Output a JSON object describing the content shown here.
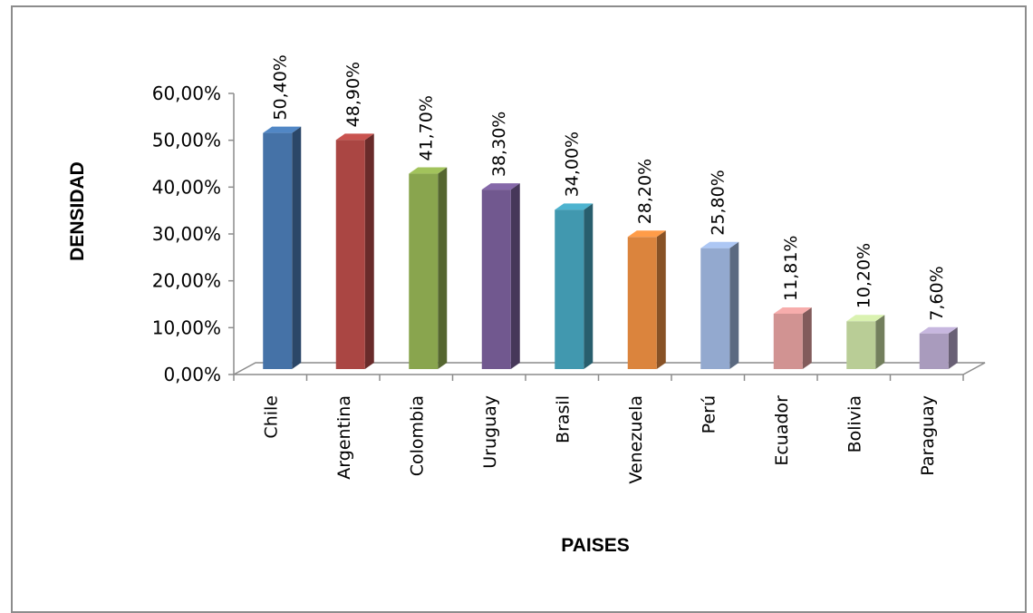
{
  "chart_data": {
    "type": "bar",
    "title": "",
    "xlabel": "PAISES",
    "ylabel": "DENSIDAD",
    "ylim": [
      0,
      60
    ],
    "y_ticks": [
      "0,00%",
      "10,00%",
      "20,00%",
      "30,00%",
      "40,00%",
      "50,00%",
      "60,00%"
    ],
    "categories": [
      "Chile",
      "Argentina",
      "Colombia",
      "Uruguay",
      "Brasil",
      "Venezuela",
      "Perú",
      "Ecuador",
      "Bolivia",
      "Paraguay"
    ],
    "values": [
      50.4,
      48.9,
      41.7,
      38.3,
      34.0,
      28.2,
      25.8,
      11.81,
      10.2,
      7.6
    ],
    "data_labels": [
      "50,40%",
      "48,90%",
      "41,70%",
      "38,30%",
      "34,00%",
      "28,20%",
      "25,80%",
      "11,81%",
      "10,20%",
      "7,60%"
    ],
    "colors": [
      "#4572a7",
      "#aa4643",
      "#89a54e",
      "#71588f",
      "#4198af",
      "#db843d",
      "#93a9cf",
      "#d19392",
      "#b9cd96",
      "#a99bbd"
    ],
    "style": "3d-column",
    "grid": false,
    "legend": "none"
  }
}
